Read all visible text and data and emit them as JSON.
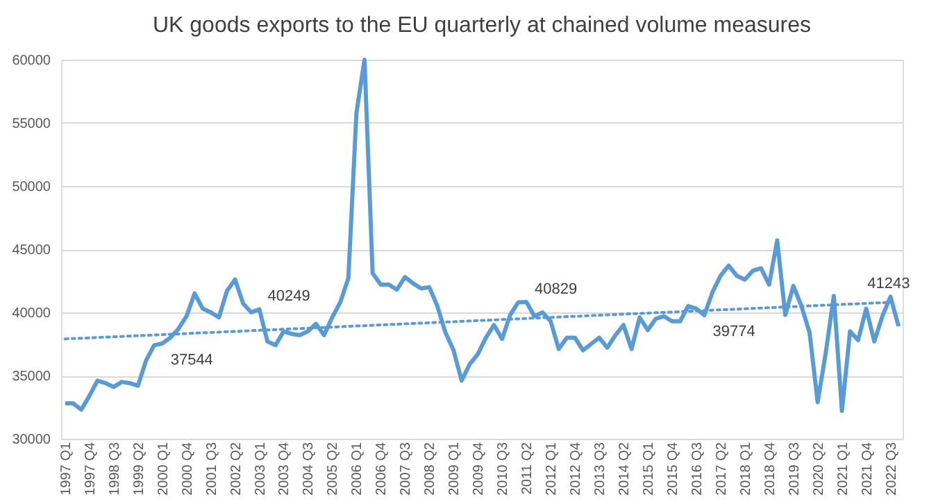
{
  "chart_data": {
    "type": "line",
    "title": "UK goods exports to the EU quarterly at chained volume measures",
    "categories": [
      "1997 Q1",
      null,
      null,
      "1997 Q4",
      null,
      null,
      "1998 Q3",
      null,
      null,
      "1999 Q2",
      null,
      null,
      "2000 Q1",
      null,
      null,
      "2000 Q4",
      null,
      null,
      "2001 Q3",
      null,
      null,
      "2002 Q2",
      null,
      null,
      "2003 Q1",
      null,
      null,
      "2003 Q4",
      null,
      null,
      "2004 Q3",
      null,
      null,
      "2005 Q2",
      null,
      null,
      "2006 Q1",
      null,
      null,
      "2006 Q4",
      null,
      null,
      "2007 Q3",
      null,
      null,
      "2008 Q2",
      null,
      null,
      "2009 Q1",
      null,
      null,
      "2009 Q4",
      null,
      null,
      "2010 Q3",
      null,
      null,
      "2011 Q2",
      null,
      null,
      "2012 Q1",
      null,
      null,
      "2012 Q4",
      null,
      null,
      "2013 Q3",
      null,
      null,
      "2014 Q2",
      null,
      null,
      "2015 Q1",
      null,
      null,
      "2015 Q4",
      null,
      null,
      "2016 Q3",
      null,
      null,
      "2017 Q2",
      null,
      null,
      "2018 Q1",
      null,
      null,
      "2018 Q4",
      null,
      null,
      "2019 Q3",
      null,
      null,
      "2020 Q2",
      null,
      null,
      "2021 Q1",
      null,
      null,
      "2021 Q4",
      null,
      null,
      "2022 Q3",
      null
    ],
    "series": [
      {
        "color": "#5b9bd5",
        "line_style": "solid",
        "values": [
          32800,
          32800,
          32300,
          33400,
          34600,
          34400,
          34100,
          34500,
          34400,
          34200,
          36200,
          37400,
          37544,
          38000,
          38700,
          39700,
          41500,
          40300,
          40000,
          39600,
          41700,
          42600,
          40700,
          40000,
          40249,
          37700,
          37400,
          38500,
          38300,
          38200,
          38500,
          39100,
          38200,
          39600,
          40800,
          42700,
          55800,
          60000,
          43100,
          42200,
          42200,
          41800,
          42800,
          42300,
          41900,
          42000,
          40500,
          38400,
          37000,
          34600,
          35900,
          36700,
          38000,
          39000,
          37900,
          39800,
          40800,
          40829,
          39700,
          40000,
          39300,
          37100,
          38000,
          38000,
          37000,
          37500,
          38000,
          37200,
          38200,
          39000,
          37100,
          39600,
          38600,
          39500,
          39700,
          39300,
          39300,
          40500,
          40300,
          39774,
          41600,
          42900,
          43700,
          42900,
          42600,
          43300,
          43500,
          42200,
          45700,
          39800,
          42100,
          40500,
          38400,
          32900,
          36800,
          41300,
          32200,
          38500,
          37800,
          40300,
          37700,
          39700,
          41243,
          38900
        ],
        "value_labels": [
          null,
          null,
          null,
          null,
          null,
          null,
          null,
          null,
          null,
          null,
          null,
          null,
          "37544",
          null,
          null,
          null,
          null,
          null,
          null,
          null,
          null,
          null,
          null,
          null,
          "40249",
          null,
          null,
          null,
          null,
          null,
          null,
          null,
          null,
          null,
          null,
          null,
          null,
          null,
          null,
          null,
          null,
          null,
          null,
          null,
          null,
          null,
          null,
          null,
          null,
          null,
          null,
          null,
          null,
          null,
          null,
          null,
          null,
          "40829",
          null,
          null,
          null,
          null,
          null,
          null,
          null,
          null,
          null,
          null,
          null,
          null,
          null,
          null,
          null,
          null,
          null,
          null,
          null,
          null,
          null,
          "39774",
          null,
          null,
          null,
          null,
          null,
          null,
          null,
          null,
          null,
          null,
          null,
          null,
          null,
          null,
          null,
          null,
          null,
          null,
          null,
          null,
          null,
          null,
          "41243",
          null
        ]
      },
      {
        "color": "#5b9bd5",
        "line_style": "dotted",
        "x": [
          "1997 Q1",
          "2022 Q3"
        ],
        "values": [
          37900,
          40800
        ]
      }
    ],
    "ylim": [
      30000,
      60000
    ],
    "yticks": [
      30000,
      35000,
      40000,
      45000,
      50000,
      55000,
      60000
    ],
    "grid": "y"
  }
}
